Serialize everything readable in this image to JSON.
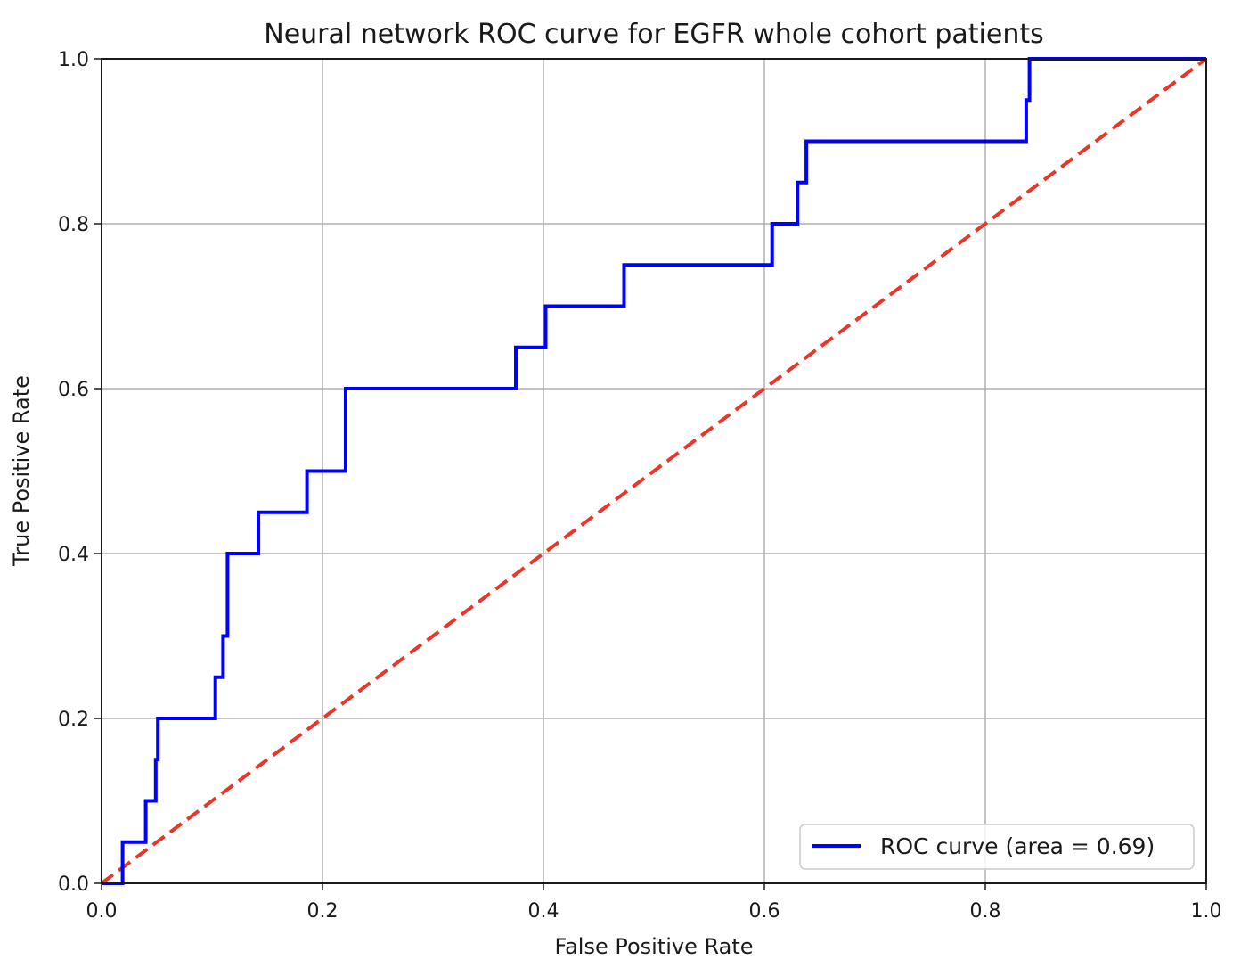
{
  "chart_data": {
    "type": "line",
    "title": "Neural network ROC curve for EGFR whole cohort patients",
    "xlabel": "False Positive Rate",
    "ylabel": "True Positive Rate",
    "xlim": [
      0.0,
      1.0
    ],
    "ylim": [
      0.0,
      1.0
    ],
    "x_ticks": [
      "0.0",
      "0.2",
      "0.4",
      "0.6",
      "0.8",
      "1.0"
    ],
    "y_ticks": [
      "0.0",
      "0.2",
      "0.4",
      "0.6",
      "0.8",
      "1.0"
    ],
    "grid": true,
    "legend_position": "lower-right",
    "series": [
      {
        "name": "ROC curve (area = 0.69)",
        "color": "#0000ff",
        "style": "solid",
        "x": [
          0.0,
          0.019,
          0.019,
          0.04,
          0.04,
          0.049,
          0.049,
          0.051,
          0.051,
          0.103,
          0.103,
          0.11,
          0.11,
          0.114,
          0.114,
          0.142,
          0.142,
          0.186,
          0.186,
          0.221,
          0.221,
          0.375,
          0.375,
          0.402,
          0.402,
          0.473,
          0.473,
          0.607,
          0.607,
          0.63,
          0.63,
          0.638,
          0.638,
          0.837,
          0.837,
          0.84,
          0.84,
          1.0
        ],
        "y": [
          0.0,
          0.0,
          0.05,
          0.05,
          0.1,
          0.1,
          0.15,
          0.15,
          0.2,
          0.2,
          0.25,
          0.25,
          0.3,
          0.3,
          0.4,
          0.4,
          0.45,
          0.45,
          0.5,
          0.5,
          0.6,
          0.6,
          0.65,
          0.65,
          0.7,
          0.7,
          0.75,
          0.75,
          0.8,
          0.8,
          0.85,
          0.85,
          0.9,
          0.9,
          0.95,
          0.95,
          1.0,
          1.0
        ]
      },
      {
        "color": "#e8362b",
        "style": "dashed",
        "x": [
          0.0,
          1.0
        ],
        "y": [
          0.0,
          1.0
        ]
      }
    ]
  }
}
